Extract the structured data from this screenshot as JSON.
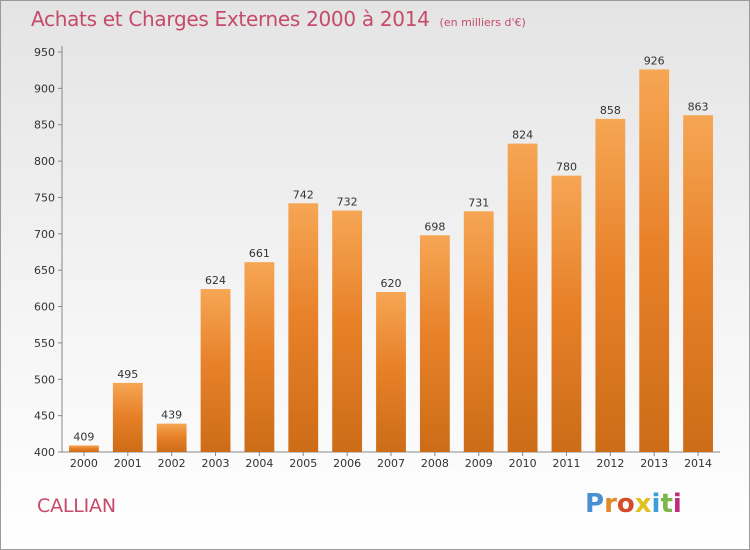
{
  "chart_data": {
    "type": "bar",
    "title": "Achats et Charges Externes 2000 à 2014",
    "subtitle": "(en milliers d'€)",
    "xlabel": "",
    "ylabel": "",
    "categories": [
      "2000",
      "2001",
      "2002",
      "2003",
      "2004",
      "2005",
      "2006",
      "2007",
      "2008",
      "2009",
      "2010",
      "2011",
      "2012",
      "2013",
      "2014"
    ],
    "values": [
      409,
      495,
      439,
      624,
      661,
      742,
      732,
      620,
      698,
      731,
      824,
      780,
      858,
      926,
      863
    ],
    "ylim": [
      400,
      950
    ],
    "yticks": [
      400,
      450,
      500,
      550,
      600,
      650,
      700,
      750,
      800,
      850,
      900,
      950
    ],
    "grid": false,
    "bar_color": "#e8822a",
    "bar_color_light": "#f6a654",
    "bar_color_dark": "#cd6c17"
  },
  "footer": {
    "commune": "CALLIAN",
    "brand_letters": [
      "P",
      "r",
      "o",
      "x",
      "i",
      "t",
      "i"
    ],
    "brand_colors": [
      "#4a8fd0",
      "#e08a2a",
      "#d64b2a",
      "#e0c020",
      "#3a9fd8",
      "#7ab648",
      "#c02a7a"
    ]
  }
}
